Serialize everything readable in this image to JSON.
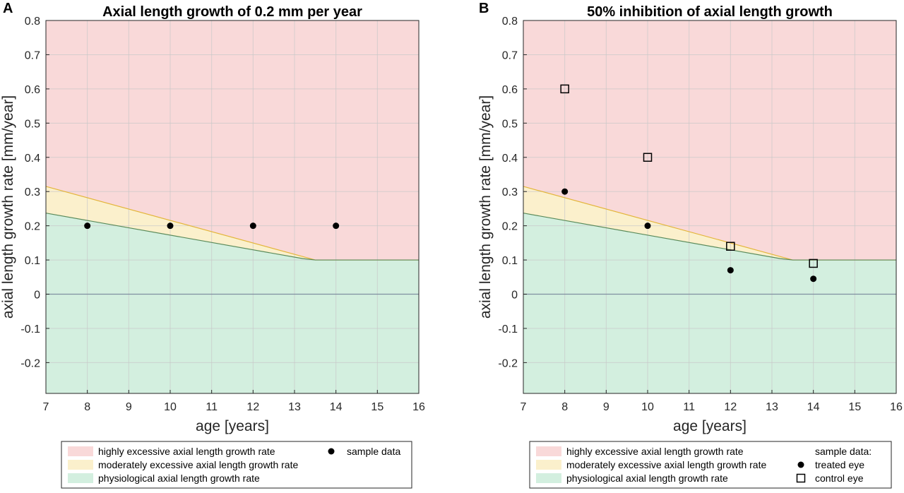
{
  "figure": {
    "panels": [
      {
        "letter": "A",
        "legend": {
          "zones": [
            "highly excessive axial length growth rate",
            "moderately excessive axial length growth rate",
            "physiological axial length growth rate"
          ],
          "sample_heading": "",
          "markers": [
            {
              "label": "sample data",
              "marker": "dot"
            }
          ]
        }
      },
      {
        "letter": "B",
        "legend": {
          "zones": [
            "highly excessive axial length growth rate",
            "moderately excessive axial length growth rate",
            "physiological axial length growth rate"
          ],
          "sample_heading": "sample data:",
          "markers": [
            {
              "label": "treated eye",
              "marker": "dot"
            },
            {
              "label": "control eye",
              "marker": "square"
            }
          ]
        }
      }
    ],
    "colors": {
      "highly_excessive": "#f9d9d9",
      "moderately_excessive": "#fbf0cc",
      "physiological": "#d3efdf",
      "moderate_boundary_line": "#e3b53a",
      "physiological_boundary_line": "#5a8a5a",
      "grid": "#c8c8c8",
      "zero_line": "#7f8fa0",
      "axis": "#262626"
    }
  },
  "chart_data": [
    {
      "type": "scatter",
      "title": "Axial length growth of 0.2 mm per year",
      "xlabel": "age [years]",
      "ylabel": "axial length growth rate [mm/year]",
      "xlim": [
        7,
        16
      ],
      "ylim": [
        -0.29,
        0.8
      ],
      "xticks": [
        7,
        8,
        9,
        10,
        11,
        12,
        13,
        14,
        15,
        16
      ],
      "yticks": [
        -0.2,
        -0.1,
        0,
        0.1,
        0.2,
        0.3,
        0.4,
        0.5,
        0.6,
        0.7,
        0.8
      ],
      "ytick_labels": [
        "-0.2",
        "-0.1",
        "0",
        "0.1",
        "0.2",
        "0.3",
        "0.4",
        "0.5",
        "0.6",
        "0.7",
        "0.8"
      ],
      "grid": true,
      "legend_position": "below",
      "zones": {
        "moderate_upper_boundary": {
          "x": [
            7,
            13.5,
            16
          ],
          "y": [
            0.315,
            0.1,
            0.1
          ]
        },
        "physiological_upper_boundary": {
          "x": [
            7,
            13.2,
            13.5,
            16
          ],
          "y": [
            0.237,
            0.104,
            0.1,
            0.1
          ]
        }
      },
      "series": [
        {
          "name": "sample data",
          "marker": "dot",
          "x": [
            8,
            10,
            12,
            14
          ],
          "y": [
            0.2,
            0.2,
            0.2,
            0.2
          ]
        }
      ]
    },
    {
      "type": "scatter",
      "title": "50% inhibition of axial length growth",
      "xlabel": "age [years]",
      "ylabel": "axial length growth rate [mm/year]",
      "xlim": [
        7,
        16
      ],
      "ylim": [
        -0.29,
        0.8
      ],
      "xticks": [
        7,
        8,
        9,
        10,
        11,
        12,
        13,
        14,
        15,
        16
      ],
      "yticks": [
        -0.2,
        -0.1,
        0,
        0.1,
        0.2,
        0.3,
        0.4,
        0.5,
        0.6,
        0.7,
        0.8
      ],
      "ytick_labels": [
        "-0.2",
        "-0.1",
        "0",
        "0.1",
        "0.2",
        "0.3",
        "0.4",
        "0.5",
        "0.6",
        "0.7",
        "0.8"
      ],
      "grid": true,
      "legend_position": "below",
      "zones": {
        "moderate_upper_boundary": {
          "x": [
            7,
            13.5,
            16
          ],
          "y": [
            0.315,
            0.1,
            0.1
          ]
        },
        "physiological_upper_boundary": {
          "x": [
            7,
            13.2,
            13.5,
            16
          ],
          "y": [
            0.237,
            0.104,
            0.1,
            0.1
          ]
        }
      },
      "series": [
        {
          "name": "treated eye",
          "marker": "dot",
          "x": [
            8,
            10,
            12,
            14
          ],
          "y": [
            0.3,
            0.2,
            0.07,
            0.045
          ]
        },
        {
          "name": "control eye",
          "marker": "square",
          "x": [
            8,
            10,
            12,
            14
          ],
          "y": [
            0.6,
            0.4,
            0.14,
            0.09
          ]
        }
      ]
    }
  ]
}
